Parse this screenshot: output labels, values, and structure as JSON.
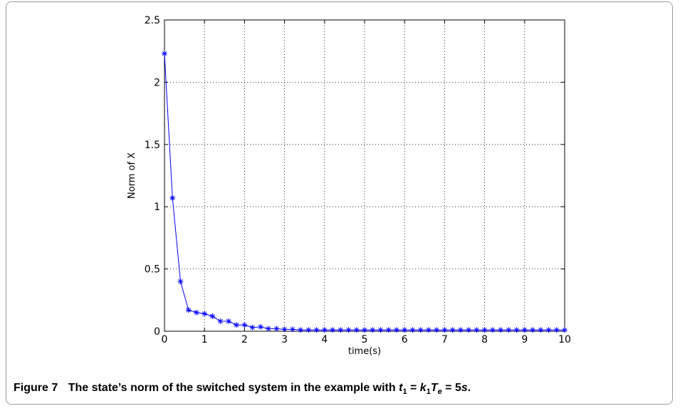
{
  "figure": {
    "label": "Figure 7",
    "caption_text": "The state’s norm of the switched system in the example with",
    "caption_eq": {
      "t": "t",
      "t_sub": "1",
      "eq1": " = ",
      "k": "k",
      "k_sub": "1",
      "T": "T",
      "T_sub": "e",
      "eq2": " = 5",
      "s": "s",
      "end": "."
    }
  },
  "chart_data": {
    "type": "line",
    "title": "",
    "xlabel": "time(s)",
    "ylabel": "Norm of X",
    "xlim": [
      0,
      10
    ],
    "ylim": [
      0,
      2.5
    ],
    "xticks": [
      0,
      1,
      2,
      3,
      4,
      5,
      6,
      7,
      8,
      9,
      10
    ],
    "xtick_labels": [
      "0",
      "1",
      "2",
      "3",
      "4",
      "5",
      "6",
      "7",
      "8",
      "9",
      "10"
    ],
    "yticks": [
      0,
      0.5,
      1,
      1.5,
      2,
      2.5
    ],
    "ytick_labels": [
      "0",
      "0.5",
      "1",
      "1.5",
      "2",
      "2.5"
    ],
    "grid": true,
    "marker": "*",
    "color": "#0000ff",
    "series": [
      {
        "x": [
          0,
          0.2,
          0.4,
          0.6,
          0.8,
          1.0,
          1.2,
          1.4,
          1.6,
          1.8,
          2.0,
          2.2,
          2.4,
          2.6,
          2.8,
          3.0,
          3.2,
          3.4,
          3.6,
          3.8,
          4.0,
          4.2,
          4.4,
          4.6,
          4.8,
          5.0,
          5.2,
          5.4,
          5.6,
          5.8,
          6.0,
          6.2,
          6.4,
          6.6,
          6.8,
          7.0,
          7.2,
          7.4,
          7.6,
          7.8,
          8.0,
          8.2,
          8.4,
          8.6,
          8.8,
          9.0,
          9.2,
          9.4,
          9.6,
          9.8,
          10.0
        ],
        "y": [
          2.23,
          1.07,
          0.4,
          0.17,
          0.15,
          0.14,
          0.12,
          0.08,
          0.08,
          0.05,
          0.05,
          0.03,
          0.035,
          0.02,
          0.02,
          0.015,
          0.015,
          0.01,
          0.01,
          0.01,
          0.01,
          0.01,
          0.01,
          0.01,
          0.01,
          0.01,
          0.01,
          0.01,
          0.01,
          0.01,
          0.01,
          0.01,
          0.01,
          0.01,
          0.01,
          0.01,
          0.01,
          0.01,
          0.01,
          0.01,
          0.01,
          0.01,
          0.01,
          0.01,
          0.01,
          0.01,
          0.01,
          0.01,
          0.01,
          0.01,
          0.01
        ]
      }
    ]
  }
}
